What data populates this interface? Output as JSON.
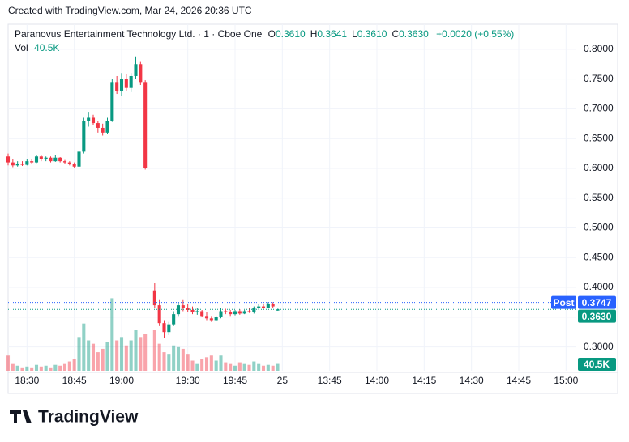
{
  "header": "Created with TradingView.com, Mar 24, 2026 20:36 UTC",
  "brand": "TradingView",
  "chart_data": {
    "type": "candlestick",
    "legend": {
      "title": "Paranovus Entertainment Technology Ltd. · 1 · Cboe One",
      "items": [
        {
          "key": "O",
          "value": "0.3610"
        },
        {
          "key": "H",
          "value": "0.3641"
        },
        {
          "key": "L",
          "value": "0.3610"
        },
        {
          "key": "C",
          "value": "0.3630"
        }
      ],
      "change": "+0.0020 (+0.55%)",
      "volume_key": "Vol",
      "volume": "40.5K"
    },
    "x": [
      0,
      1,
      2,
      3,
      4,
      5,
      6,
      7,
      8,
      9,
      10,
      11,
      12,
      13,
      14,
      15,
      16,
      17,
      18,
      19,
      20,
      21,
      22,
      23,
      24,
      25,
      26,
      27,
      28,
      29,
      31,
      32,
      33,
      34,
      35,
      36,
      37,
      38,
      39,
      40,
      41,
      42,
      43,
      44,
      45,
      46,
      47,
      48,
      49,
      50,
      51,
      52,
      53,
      54,
      55,
      56,
      57
    ],
    "open": [
      0.62,
      0.61,
      0.605,
      0.608,
      0.606,
      0.612,
      0.61,
      0.62,
      0.615,
      0.618,
      0.612,
      0.618,
      0.612,
      0.61,
      0.608,
      0.603,
      0.628,
      0.68,
      0.685,
      0.676,
      0.668,
      0.66,
      0.68,
      0.745,
      0.73,
      0.75,
      0.735,
      0.755,
      0.775,
      0.745,
      0.395,
      0.37,
      0.34,
      0.325,
      0.338,
      0.355,
      0.37,
      0.365,
      0.362,
      0.358,
      0.36,
      0.352,
      0.348,
      0.345,
      0.35,
      0.36,
      0.358,
      0.355,
      0.36,
      0.356,
      0.36,
      0.358,
      0.365,
      0.368,
      0.366,
      0.372,
      0.361
    ],
    "high": [
      0.625,
      0.615,
      0.612,
      0.612,
      0.615,
      0.616,
      0.622,
      0.622,
      0.62,
      0.62,
      0.622,
      0.619,
      0.614,
      0.612,
      0.61,
      0.63,
      0.685,
      0.695,
      0.69,
      0.68,
      0.675,
      0.685,
      0.75,
      0.755,
      0.76,
      0.758,
      0.76,
      0.788,
      0.78,
      0.748,
      0.408,
      0.38,
      0.345,
      0.342,
      0.36,
      0.375,
      0.38,
      0.372,
      0.368,
      0.365,
      0.362,
      0.358,
      0.352,
      0.352,
      0.365,
      0.364,
      0.362,
      0.362,
      0.363,
      0.362,
      0.366,
      0.368,
      0.372,
      0.372,
      0.375,
      0.375,
      0.3641
    ],
    "low": [
      0.605,
      0.602,
      0.603,
      0.604,
      0.605,
      0.608,
      0.609,
      0.612,
      0.612,
      0.61,
      0.611,
      0.61,
      0.608,
      0.605,
      0.6,
      0.6,
      0.625,
      0.67,
      0.672,
      0.66,
      0.655,
      0.658,
      0.678,
      0.725,
      0.722,
      0.73,
      0.728,
      0.75,
      0.74,
      0.598,
      0.365,
      0.335,
      0.315,
      0.32,
      0.335,
      0.352,
      0.36,
      0.358,
      0.355,
      0.354,
      0.35,
      0.345,
      0.342,
      0.343,
      0.348,
      0.355,
      0.352,
      0.353,
      0.354,
      0.355,
      0.357,
      0.356,
      0.362,
      0.364,
      0.365,
      0.366,
      0.361
    ],
    "close": [
      0.61,
      0.605,
      0.608,
      0.606,
      0.612,
      0.61,
      0.62,
      0.615,
      0.618,
      0.612,
      0.618,
      0.612,
      0.61,
      0.608,
      0.603,
      0.628,
      0.68,
      0.685,
      0.676,
      0.668,
      0.66,
      0.68,
      0.745,
      0.73,
      0.75,
      0.735,
      0.755,
      0.775,
      0.745,
      0.6,
      0.37,
      0.34,
      0.325,
      0.338,
      0.355,
      0.37,
      0.365,
      0.362,
      0.358,
      0.36,
      0.352,
      0.348,
      0.345,
      0.35,
      0.36,
      0.358,
      0.355,
      0.36,
      0.356,
      0.36,
      0.358,
      0.365,
      0.368,
      0.366,
      0.372,
      0.368,
      0.363
    ],
    "volume": [
      90000,
      40000,
      30000,
      20000,
      25000,
      20000,
      35000,
      25000,
      30000,
      20000,
      35000,
      30000,
      40000,
      55000,
      70000,
      200000,
      280000,
      180000,
      160000,
      110000,
      130000,
      170000,
      430000,
      180000,
      200000,
      150000,
      180000,
      240000,
      200000,
      220000,
      240000,
      160000,
      110000,
      100000,
      150000,
      140000,
      130000,
      100000,
      60000,
      40000,
      70000,
      80000,
      90000,
      60000,
      90000,
      50000,
      40000,
      30000,
      50000,
      40000,
      35000,
      55000,
      40000,
      30000,
      35000,
      30000,
      40500
    ],
    "up_color": "#089981",
    "down_color": "#f23645",
    "xlim": [
      0,
      120
    ],
    "xticks": [
      {
        "value": 4,
        "label": "18:30"
      },
      {
        "value": 14,
        "label": "18:45"
      },
      {
        "value": 24,
        "label": "19:00"
      },
      {
        "value": 38,
        "label": "19:30"
      },
      {
        "value": 48,
        "label": "19:45"
      },
      {
        "value": 58,
        "label": "25"
      },
      {
        "value": 68,
        "label": "13:45"
      },
      {
        "value": 78,
        "label": "14:00"
      },
      {
        "value": 88,
        "label": "14:15"
      },
      {
        "value": 98,
        "label": "14:30"
      },
      {
        "value": 108,
        "label": "14:45"
      },
      {
        "value": 118,
        "label": "15:00"
      }
    ],
    "ylim": [
      0.26,
      0.842
    ],
    "yticks": [
      {
        "value": 0.3,
        "label": "0.3000"
      },
      {
        "value": 0.35,
        "label": "0.3500"
      },
      {
        "value": 0.4,
        "label": "0.4000"
      },
      {
        "value": 0.45,
        "label": "0.4500"
      },
      {
        "value": 0.5,
        "label": "0.5000"
      },
      {
        "value": 0.55,
        "label": "0.5500"
      },
      {
        "value": 0.6,
        "label": "0.6000"
      },
      {
        "value": 0.65,
        "label": "0.6500"
      },
      {
        "value": 0.7,
        "label": "0.7000"
      },
      {
        "value": 0.75,
        "label": "0.7500"
      },
      {
        "value": 0.8,
        "label": "0.8000"
      }
    ],
    "vlim": [
      0,
      480000
    ],
    "grid": true,
    "price_lines": [
      {
        "name": "Post",
        "value": 0.3747,
        "label": "0.3747",
        "color": "#2962ff"
      },
      {
        "value": 0.363,
        "label": "0.3630",
        "color": "#089981"
      }
    ]
  }
}
